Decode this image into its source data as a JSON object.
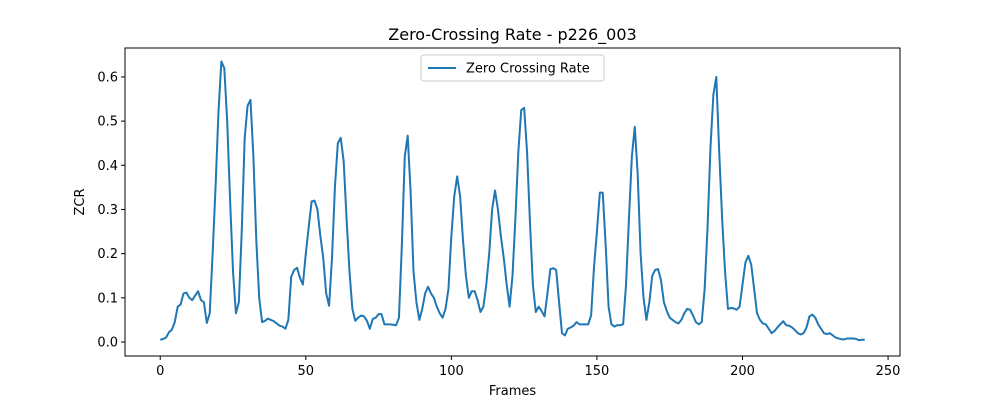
{
  "chart_data": {
    "type": "line",
    "title": "Zero-Crossing Rate - p226_003",
    "xlabel": "Frames",
    "ylabel": "ZCR",
    "xlim": [
      -12.1,
      254.1
    ],
    "ylim": [
      -0.0317,
      0.6655
    ],
    "xticks": [
      0,
      50,
      100,
      150,
      200,
      250
    ],
    "yticks": [
      0.0,
      0.1,
      0.2,
      0.3,
      0.4,
      0.5,
      0.6
    ],
    "xtick_labels": [
      "0",
      "50",
      "100",
      "150",
      "200",
      "250"
    ],
    "ytick_labels": [
      "0.0",
      "0.1",
      "0.2",
      "0.3",
      "0.4",
      "0.5",
      "0.6"
    ],
    "grid": false,
    "legend": "upper center",
    "series": [
      {
        "name": "Zero Crossing Rate",
        "color": "#1f77b4",
        "x": [
          0,
          1,
          2,
          3,
          4,
          5,
          6,
          7,
          8,
          9,
          10,
          11,
          12,
          13,
          14,
          15,
          16,
          17,
          18,
          19,
          20,
          21,
          22,
          23,
          24,
          25,
          26,
          27,
          28,
          29,
          30,
          31,
          32,
          33,
          34,
          35,
          36,
          37,
          38,
          39,
          40,
          41,
          42,
          43,
          44,
          45,
          46,
          47,
          48,
          49,
          50,
          51,
          52,
          53,
          54,
          55,
          56,
          57,
          58,
          59,
          60,
          61,
          62,
          63,
          64,
          65,
          66,
          67,
          68,
          69,
          70,
          71,
          72,
          73,
          74,
          75,
          76,
          77,
          78,
          79,
          80,
          81,
          82,
          83,
          84,
          85,
          86,
          87,
          88,
          89,
          90,
          91,
          92,
          93,
          94,
          95,
          96,
          97,
          98,
          99,
          100,
          101,
          102,
          103,
          104,
          105,
          106,
          107,
          108,
          109,
          110,
          111,
          112,
          113,
          114,
          115,
          116,
          117,
          118,
          119,
          120,
          121,
          122,
          123,
          124,
          125,
          126,
          127,
          128,
          129,
          130,
          131,
          132,
          133,
          134,
          135,
          136,
          137,
          138,
          139,
          140,
          141,
          142,
          143,
          144,
          145,
          146,
          147,
          148,
          149,
          150,
          151,
          152,
          153,
          154,
          155,
          156,
          157,
          158,
          159,
          160,
          161,
          162,
          163,
          164,
          165,
          166,
          167,
          168,
          169,
          170,
          171,
          172,
          173,
          174,
          175,
          176,
          177,
          178,
          179,
          180,
          181,
          182,
          183,
          184,
          185,
          186,
          187,
          188,
          189,
          190,
          191,
          192,
          193,
          194,
          195,
          196,
          197,
          198,
          199,
          200,
          201,
          202,
          203,
          204,
          205,
          206,
          207,
          208,
          209,
          210,
          211,
          212,
          213,
          214,
          215,
          216,
          217,
          218,
          219,
          220,
          221,
          222,
          223,
          224,
          225,
          226,
          227,
          228,
          229,
          230,
          231,
          232,
          233,
          234,
          235,
          236,
          237,
          238,
          239,
          240,
          241,
          242
        ],
        "values": [
          0.005,
          0.007,
          0.01,
          0.022,
          0.028,
          0.045,
          0.08,
          0.085,
          0.11,
          0.112,
          0.1,
          0.095,
          0.105,
          0.115,
          0.095,
          0.09,
          0.043,
          0.065,
          0.2,
          0.35,
          0.52,
          0.635,
          0.62,
          0.5,
          0.32,
          0.16,
          0.065,
          0.09,
          0.25,
          0.46,
          0.535,
          0.548,
          0.42,
          0.23,
          0.1,
          0.045,
          0.048,
          0.053,
          0.05,
          0.047,
          0.042,
          0.037,
          0.035,
          0.03,
          0.05,
          0.148,
          0.163,
          0.168,
          0.145,
          0.13,
          0.2,
          0.26,
          0.318,
          0.32,
          0.3,
          0.24,
          0.19,
          0.11,
          0.082,
          0.19,
          0.35,
          0.45,
          0.462,
          0.41,
          0.28,
          0.16,
          0.075,
          0.048,
          0.055,
          0.06,
          0.058,
          0.048,
          0.03,
          0.052,
          0.055,
          0.063,
          0.063,
          0.04,
          0.04,
          0.04,
          0.039,
          0.038,
          0.055,
          0.22,
          0.42,
          0.467,
          0.34,
          0.16,
          0.09,
          0.05,
          0.075,
          0.11,
          0.125,
          0.11,
          0.1,
          0.08,
          0.065,
          0.055,
          0.075,
          0.12,
          0.24,
          0.33,
          0.375,
          0.33,
          0.23,
          0.15,
          0.1,
          0.115,
          0.115,
          0.095,
          0.068,
          0.08,
          0.13,
          0.2,
          0.3,
          0.343,
          0.3,
          0.24,
          0.19,
          0.13,
          0.08,
          0.15,
          0.28,
          0.43,
          0.525,
          0.53,
          0.43,
          0.27,
          0.13,
          0.068,
          0.08,
          0.07,
          0.058,
          0.11,
          0.165,
          0.167,
          0.163,
          0.09,
          0.02,
          0.015,
          0.03,
          0.033,
          0.037,
          0.045,
          0.04,
          0.04,
          0.04,
          0.04,
          0.06,
          0.17,
          0.25,
          0.338,
          0.338,
          0.22,
          0.08,
          0.04,
          0.035,
          0.038,
          0.038,
          0.04,
          0.13,
          0.28,
          0.42,
          0.487,
          0.38,
          0.2,
          0.1,
          0.05,
          0.09,
          0.15,
          0.163,
          0.165,
          0.14,
          0.09,
          0.07,
          0.055,
          0.05,
          0.045,
          0.042,
          0.05,
          0.065,
          0.075,
          0.073,
          0.06,
          0.045,
          0.04,
          0.045,
          0.12,
          0.26,
          0.44,
          0.56,
          0.6,
          0.43,
          0.28,
          0.16,
          0.075,
          0.077,
          0.076,
          0.073,
          0.08,
          0.13,
          0.18,
          0.195,
          0.175,
          0.12,
          0.065,
          0.05,
          0.042,
          0.04,
          0.03,
          0.02,
          0.025,
          0.033,
          0.04,
          0.047,
          0.038,
          0.037,
          0.033,
          0.027,
          0.02,
          0.017,
          0.02,
          0.033,
          0.058,
          0.062,
          0.055,
          0.04,
          0.03,
          0.02,
          0.018,
          0.02,
          0.015,
          0.01,
          0.008,
          0.006,
          0.006,
          0.008,
          0.008,
          0.008,
          0.007,
          0.004,
          0.005,
          0.005
        ]
      }
    ]
  }
}
